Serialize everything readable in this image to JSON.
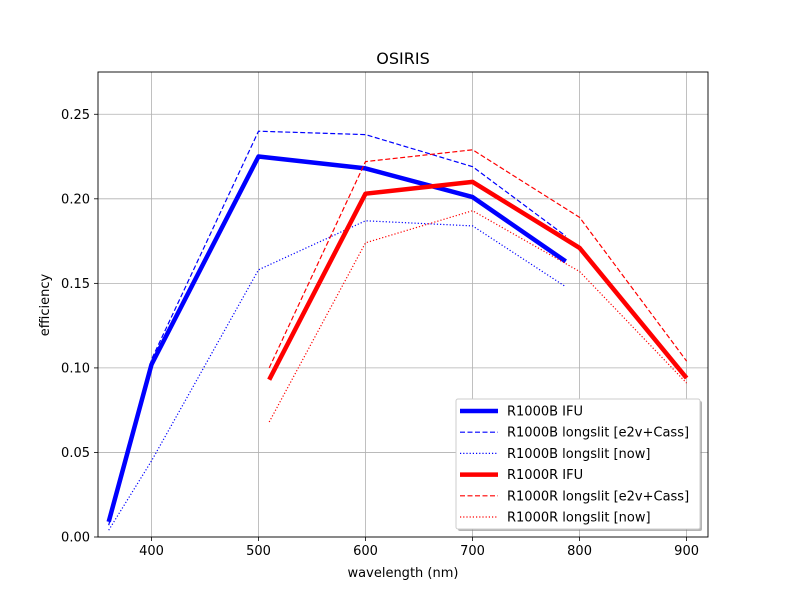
{
  "chart_data": {
    "type": "line",
    "title": "OSIRIS",
    "xlabel": "wavelength (nm)",
    "ylabel": "efficiency",
    "xlim": [
      350,
      920
    ],
    "ylim": [
      0.0,
      0.275
    ],
    "xticks": [
      400,
      500,
      600,
      700,
      800,
      900
    ],
    "yticks": [
      0.0,
      0.05,
      0.1,
      0.15,
      0.2,
      0.25
    ],
    "xtick_labels": [
      "400",
      "500",
      "600",
      "700",
      "800",
      "900"
    ],
    "ytick_labels": [
      "0.00",
      "0.05",
      "0.10",
      "0.15",
      "0.20",
      "0.25"
    ],
    "grid": true,
    "legend_position": "lower-right",
    "series": [
      {
        "name": "R1000B IFU",
        "color": "#0000ff",
        "style": "solid-thick",
        "x": [
          360,
          400,
          500,
          600,
          700,
          787
        ],
        "y": [
          0.009,
          0.102,
          0.225,
          0.218,
          0.201,
          0.163
        ]
      },
      {
        "name": "R1000B longslit [e2v+Cass]",
        "color": "#0000ff",
        "style": "dashed",
        "x": [
          360,
          400,
          500,
          600,
          700,
          787
        ],
        "y": [
          0.007,
          0.105,
          0.24,
          0.238,
          0.219,
          0.178
        ]
      },
      {
        "name": "R1000B longslit [now]",
        "color": "#0000ff",
        "style": "dotted",
        "x": [
          360,
          400,
          500,
          600,
          700,
          787
        ],
        "y": [
          0.004,
          0.045,
          0.158,
          0.187,
          0.184,
          0.148
        ]
      },
      {
        "name": "R1000R IFU",
        "color": "#ff0000",
        "style": "solid-thick",
        "x": [
          510,
          600,
          700,
          800,
          900
        ],
        "y": [
          0.093,
          0.203,
          0.21,
          0.171,
          0.094
        ]
      },
      {
        "name": "R1000R longslit [e2v+Cass]",
        "color": "#ff0000",
        "style": "dashed",
        "x": [
          510,
          600,
          700,
          800,
          900
        ],
        "y": [
          0.1,
          0.222,
          0.229,
          0.189,
          0.104
        ]
      },
      {
        "name": "R1000R longslit [now]",
        "color": "#ff0000",
        "style": "dotted",
        "x": [
          510,
          600,
          700,
          800,
          900
        ],
        "y": [
          0.068,
          0.174,
          0.193,
          0.157,
          0.091
        ]
      }
    ]
  }
}
